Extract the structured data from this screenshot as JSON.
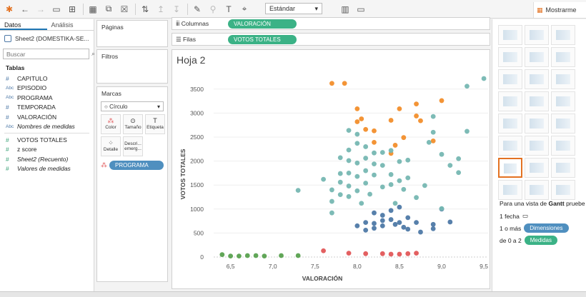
{
  "toolbar": {
    "fit_value": "Estándar",
    "show_me_label": "Mostrarme",
    "icons": [
      "tableau-logo-icon",
      "undo-icon",
      "redo-icon",
      "save-icon",
      "add-datasource-icon",
      "new-sheet-icon",
      "duplicate-sheet-icon",
      "clear-sheet-icon",
      "swap-icon",
      "sort-asc-icon",
      "sort-desc-icon",
      "highlight-icon",
      "group-icon",
      "label-icon",
      "presentation-icon"
    ]
  },
  "left_pane": {
    "tabs": [
      "Datos",
      "Análisis"
    ],
    "datasource": "Sheet2 (DOMESTIKA-SE...",
    "search_placeholder": "Buscar",
    "section_title": "Tablas",
    "fields": [
      {
        "type": "#",
        "name": "CAPITULO",
        "italic": false
      },
      {
        "type": "Abc",
        "name": "EPISODIO",
        "italic": false
      },
      {
        "type": "Abc",
        "name": "PROGRAMA",
        "italic": false
      },
      {
        "type": "#",
        "name": "TEMPORADA",
        "italic": false
      },
      {
        "type": "#",
        "name": "VALORACIÓN",
        "italic": false
      },
      {
        "type": "Abc",
        "name": "Nombres de medidas",
        "italic": true
      }
    ],
    "measures": [
      {
        "type": "#",
        "name": "VOTOS TOTALES",
        "italic": false
      },
      {
        "type": "#",
        "name": "z score",
        "italic": false
      },
      {
        "type": "#",
        "name": "Sheet2 (Recuento)",
        "italic": true
      },
      {
        "type": "#",
        "name": "Valores de medidas",
        "italic": true
      }
    ]
  },
  "cards": {
    "pages_title": "Páginas",
    "filters_title": "Filtros",
    "marks_title": "Marcas",
    "mark_type": "Círculo",
    "mark_buttons": [
      {
        "label": "Color"
      },
      {
        "label": "Tamaño"
      },
      {
        "label": "Etiqueta"
      },
      {
        "label": "Detalle"
      },
      {
        "label": "Descri... emerg..."
      }
    ],
    "color_pill": "PROGRAMA"
  },
  "shelves": {
    "columns_label": "Columnas",
    "columns_pill": "VALORACIÓN",
    "rows_label": "Filas",
    "rows_pill": "VOTOS TOTALES"
  },
  "sheet": {
    "title": "Hoja 2"
  },
  "show_me": {
    "hint_prefix": "Para una vista de ",
    "hint_bold": "Gantt",
    "hint_suffix": " pruebe",
    "req1": "1 fecha",
    "req2_prefix": "1 o más",
    "req2_pill": "Dimensiones",
    "req3_prefix": "de 0 a 2",
    "req3_pill": "Medidas"
  },
  "chart_data": {
    "type": "scatter",
    "xlabel": "VALORACIÓN",
    "ylabel": "VOTOS TOTALES",
    "xlim": [
      6.3,
      9.55
    ],
    "ylim": [
      0,
      3750
    ],
    "xticks": [
      "6,5",
      "7,0",
      "7,5",
      "8,0",
      "8,5",
      "9,0",
      "9,5"
    ],
    "xtick_values": [
      6.5,
      7.0,
      7.5,
      8.0,
      8.5,
      9.0,
      9.5
    ],
    "yticks": [
      "0",
      "500",
      "1000",
      "1500",
      "2000",
      "2500",
      "3000",
      "3500"
    ],
    "ytick_values": [
      0,
      500,
      1000,
      1500,
      2000,
      2500,
      3000,
      3500
    ],
    "colors": {
      "teal": "#76b7b2",
      "orange": "#f28e2b",
      "blue": "#4e79a7",
      "red": "#e15759",
      "green": "#59a14f"
    },
    "series": [
      {
        "color": "green",
        "points": [
          [
            6.4,
            50
          ],
          [
            6.5,
            20
          ],
          [
            6.6,
            20
          ],
          [
            6.7,
            30
          ],
          [
            6.8,
            30
          ],
          [
            6.9,
            20
          ],
          [
            7.1,
            30
          ],
          [
            7.3,
            30
          ]
        ]
      },
      {
        "color": "red",
        "points": [
          [
            7.6,
            130
          ],
          [
            7.9,
            80
          ],
          [
            8.1,
            70
          ],
          [
            8.3,
            70
          ],
          [
            8.4,
            60
          ],
          [
            8.5,
            60
          ],
          [
            8.6,
            70
          ],
          [
            8.7,
            80
          ]
        ]
      },
      {
        "color": "blue",
        "points": [
          [
            8.0,
            650
          ],
          [
            8.1,
            560
          ],
          [
            8.1,
            720
          ],
          [
            8.2,
            920
          ],
          [
            8.2,
            700
          ],
          [
            8.2,
            600
          ],
          [
            8.3,
            870
          ],
          [
            8.3,
            760
          ],
          [
            8.3,
            650
          ],
          [
            8.4,
            970
          ],
          [
            8.4,
            780
          ],
          [
            8.45,
            680
          ],
          [
            8.5,
            1040
          ],
          [
            8.5,
            720
          ],
          [
            8.55,
            620
          ],
          [
            8.6,
            580
          ],
          [
            8.6,
            820
          ],
          [
            8.7,
            720
          ],
          [
            8.75,
            520
          ],
          [
            8.9,
            680
          ],
          [
            8.9,
            590
          ],
          [
            9.0,
            1000
          ],
          [
            9.1,
            730
          ]
        ]
      },
      {
        "color": "orange",
        "points": [
          [
            7.7,
            3620
          ],
          [
            7.85,
            3620
          ],
          [
            8.0,
            3090
          ],
          [
            8.0,
            2820
          ],
          [
            8.05,
            2880
          ],
          [
            8.1,
            2660
          ],
          [
            8.2,
            2630
          ],
          [
            8.2,
            2390
          ],
          [
            8.4,
            2160
          ],
          [
            8.4,
            2850
          ],
          [
            8.45,
            2330
          ],
          [
            8.5,
            3090
          ],
          [
            8.55,
            2490
          ],
          [
            8.7,
            2940
          ],
          [
            8.7,
            3190
          ],
          [
            8.75,
            2840
          ],
          [
            8.9,
            2420
          ],
          [
            9.0,
            3260
          ]
        ]
      },
      {
        "color": "teal",
        "points": [
          [
            7.3,
            1390
          ],
          [
            7.6,
            1620
          ],
          [
            7.7,
            1400
          ],
          [
            7.7,
            1160
          ],
          [
            7.7,
            920
          ],
          [
            7.8,
            2070
          ],
          [
            7.8,
            1740
          ],
          [
            7.8,
            1560
          ],
          [
            7.8,
            1300
          ],
          [
            7.9,
            2640
          ],
          [
            7.9,
            2230
          ],
          [
            7.9,
            2010
          ],
          [
            7.9,
            1750
          ],
          [
            7.9,
            1480
          ],
          [
            7.9,
            1260
          ],
          [
            8.0,
            2560
          ],
          [
            8.0,
            2370
          ],
          [
            8.0,
            1960
          ],
          [
            8.0,
            1680
          ],
          [
            8.0,
            1380
          ],
          [
            8.05,
            1120
          ],
          [
            8.1,
            2300
          ],
          [
            8.1,
            2060
          ],
          [
            8.1,
            1800
          ],
          [
            8.1,
            1540
          ],
          [
            8.15,
            1310
          ],
          [
            8.2,
            2170
          ],
          [
            8.2,
            1940
          ],
          [
            8.2,
            1710
          ],
          [
            8.3,
            2180
          ],
          [
            8.3,
            1910
          ],
          [
            8.3,
            1460
          ],
          [
            8.4,
            2220
          ],
          [
            8.4,
            1720
          ],
          [
            8.4,
            1510
          ],
          [
            8.45,
            1120
          ],
          [
            8.5,
            1990
          ],
          [
            8.5,
            1590
          ],
          [
            8.55,
            1410
          ],
          [
            8.6,
            2020
          ],
          [
            8.6,
            1650
          ],
          [
            8.7,
            1240
          ],
          [
            8.8,
            1490
          ],
          [
            8.85,
            2390
          ],
          [
            8.9,
            2930
          ],
          [
            8.9,
            2600
          ],
          [
            9.0,
            2140
          ],
          [
            9.0,
            1010
          ],
          [
            9.1,
            1910
          ],
          [
            9.2,
            1760
          ],
          [
            9.2,
            2050
          ],
          [
            9.3,
            3560
          ],
          [
            9.3,
            2620
          ],
          [
            9.5,
            3720
          ]
        ]
      }
    ]
  }
}
